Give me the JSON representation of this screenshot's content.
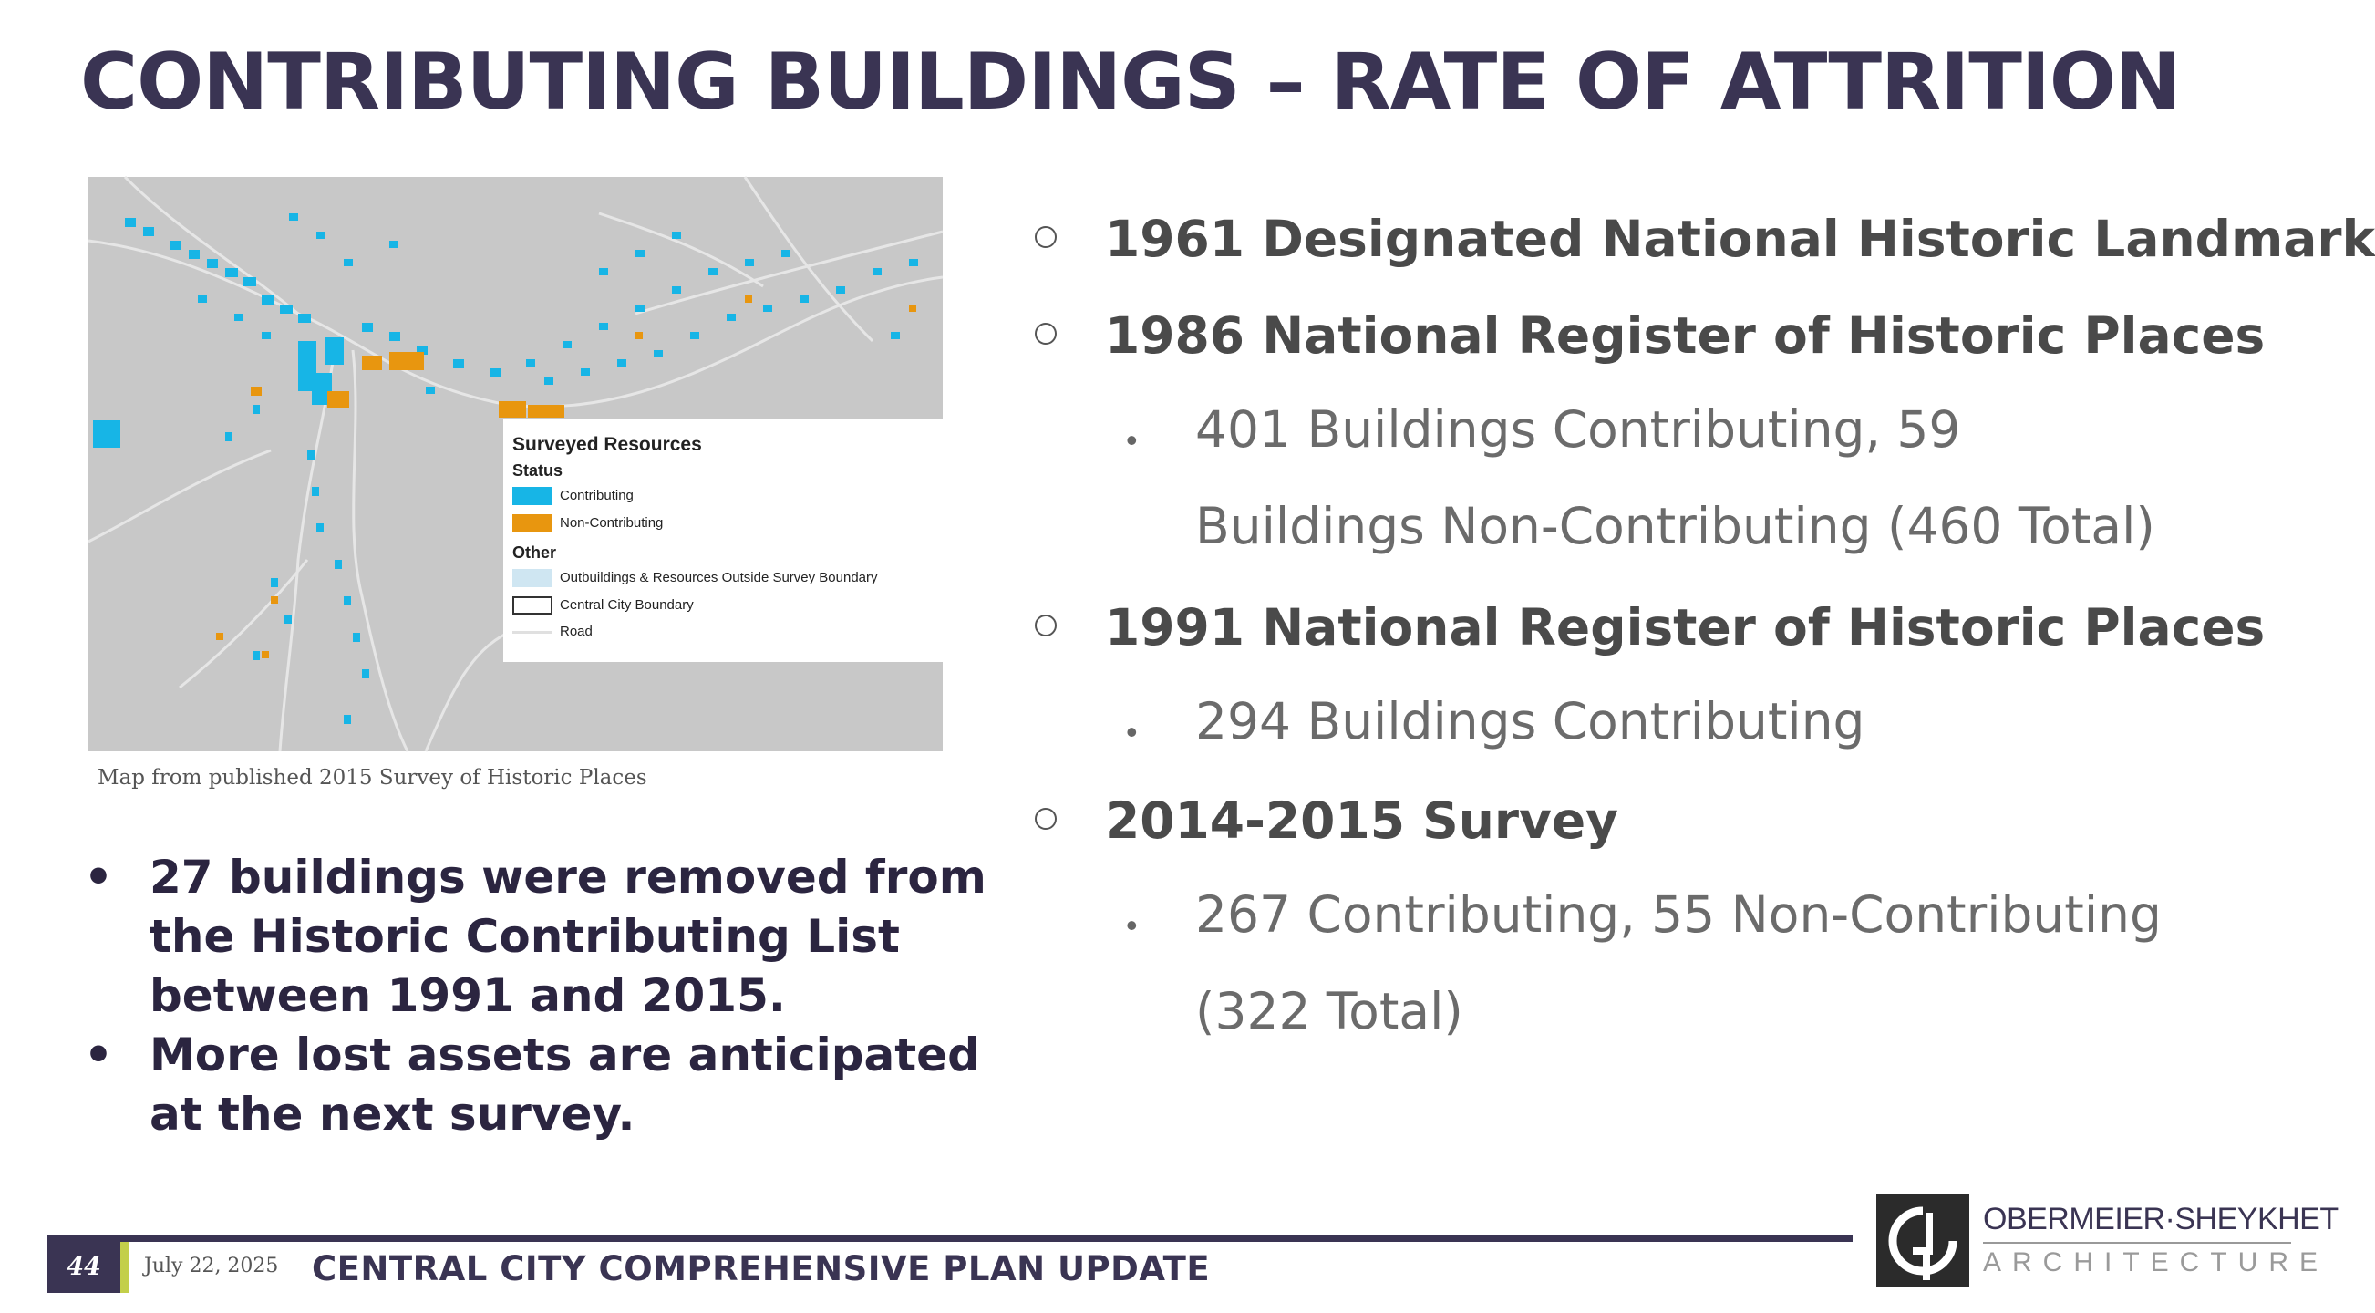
{
  "title": "CONTRIBUTING BUILDINGS – RATE OF ATTRITION",
  "map": {
    "legend": {
      "title": "Surveyed Resources",
      "status_heading": "Status",
      "other_heading": "Other",
      "items": [
        {
          "label": "Contributing",
          "color": "#17b5e6"
        },
        {
          "label": "Non-Contributing",
          "color": "#e8960f"
        },
        {
          "label": "Outbuildings & Resources Outside Survey Boundary",
          "color": "#cfe6f2"
        },
        {
          "label": "Central City Boundary",
          "color": "#ffffff"
        },
        {
          "label": "Road",
          "color": "#e8e8e8"
        }
      ]
    },
    "caption": "Map from published 2015 Survey of Historic Places"
  },
  "left_bullets": [
    {
      "marker": "•",
      "text": "27 buildings were removed from the Historic Contributing List between 1991 and 2015."
    },
    {
      "marker": "•",
      "text": "More lost assets are anticipated at the next survey."
    }
  ],
  "right_list": [
    {
      "level": 1,
      "text": "1961 Designated National Historic Landmark"
    },
    {
      "level": 1,
      "text": "1986 National Register of Historic Places"
    },
    {
      "level": 2,
      "text": "401 Buildings Contributing, 59 Buildings Non-Contributing (460 Total)"
    },
    {
      "level": 1,
      "text": "1991 National Register of Historic Places"
    },
    {
      "level": 2,
      "text": "294 Buildings Contributing"
    },
    {
      "level": 1,
      "text": "2014-2015 Survey"
    },
    {
      "level": 2,
      "text": "267 Contributing, 55 Non-Contributing (322 Total)"
    }
  ],
  "footer": {
    "page_number": "44",
    "date": "July 22, 2025",
    "plan_title": "CENTRAL CITY COMPREHENSIVE PLAN UPDATE",
    "firm_name": "OBERMEIER·SHEYKHET",
    "firm_subtitle": "ARCHITECTURE"
  },
  "colors": {
    "title": "#3a3453",
    "accent": "#c3cf4a",
    "contributing": "#17b5e6",
    "non_contributing": "#e8960f"
  }
}
